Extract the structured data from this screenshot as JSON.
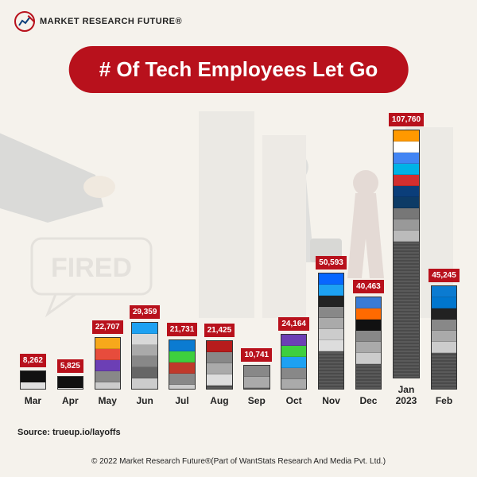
{
  "brand": {
    "name": "MARKET RESEARCH FUTURE®"
  },
  "title": "# Of Tech Employees Let Go",
  "chart": {
    "type": "bar",
    "y_max": 110000,
    "bar_fill": "#5a5a5a",
    "value_badge_bg": "#b8111c",
    "value_badge_color": "#ffffff",
    "page_bg": "#f5f2ec",
    "bars": [
      {
        "label": "Mar",
        "value": 8262,
        "value_text": "8,262",
        "logos": [
          "#111111",
          "#e0e0e0"
        ]
      },
      {
        "label": "Apr",
        "value": 5825,
        "value_text": "5,825",
        "logos": [
          "#111111",
          "#e0e0e0"
        ]
      },
      {
        "label": "May",
        "value": 22707,
        "value_text": "22,707",
        "logos": [
          "#f7a81b",
          "#e74c3c",
          "#6c3fb5",
          "#888888",
          "#cccccc"
        ]
      },
      {
        "label": "Jun",
        "value": 29359,
        "value_text": "29,359",
        "logos": [
          "#1da1f2",
          "#d8d8d8",
          "#aaaaaa",
          "#888888",
          "#666666",
          "#cccccc"
        ]
      },
      {
        "label": "Jul",
        "value": 21731,
        "value_text": "21,731",
        "logos": [
          "#0b7bd1",
          "#3ecf3e",
          "#c0392b",
          "#888888",
          "#cccccc"
        ]
      },
      {
        "label": "Aug",
        "value": 21425,
        "value_text": "21,425",
        "logos": [
          "#b71c1c",
          "#888888",
          "#aaaaaa",
          "#dddddd"
        ]
      },
      {
        "label": "Sep",
        "value": 10741,
        "value_text": "10,741",
        "logos": [
          "#888888",
          "#aaaaaa"
        ]
      },
      {
        "label": "Oct",
        "value": 24164,
        "value_text": "24,164",
        "logos": [
          "#6c3fb5",
          "#3ecf3e",
          "#1da1f2",
          "#888888",
          "#aaaaaa"
        ]
      },
      {
        "label": "Nov",
        "value": 50593,
        "value_text": "50,593",
        "logos": [
          "#0866ff",
          "#1da1f2",
          "#222222",
          "#888888",
          "#aaaaaa",
          "#cccccc",
          "#dddddd"
        ]
      },
      {
        "label": "Dec",
        "value": 40463,
        "value_text": "40,463",
        "logos": [
          "#3a7bd5",
          "#ff6a00",
          "#111111",
          "#888888",
          "#aaaaaa",
          "#cccccc"
        ]
      },
      {
        "label": "Jan\n2023",
        "value": 107760,
        "value_text": "107,760",
        "logos": [
          "#ff9900",
          "#ffffff",
          "#4285f4",
          "#00b3e6",
          "#d32f2f",
          "#0b3e7a",
          "#0d3b66",
          "#777777",
          "#999999",
          "#bbbbbb"
        ]
      },
      {
        "label": "Feb",
        "value": 45245,
        "value_text": "45,245",
        "logos": [
          "#0b7bd1",
          "#0076ce",
          "#222222",
          "#888888",
          "#aaaaaa",
          "#cccccc"
        ]
      }
    ]
  },
  "source_line": "Source: trueup.io/layoffs",
  "copyright": "© 2022 Market Research Future®(Part of WantStats Research And Media Pvt. Ltd.)"
}
